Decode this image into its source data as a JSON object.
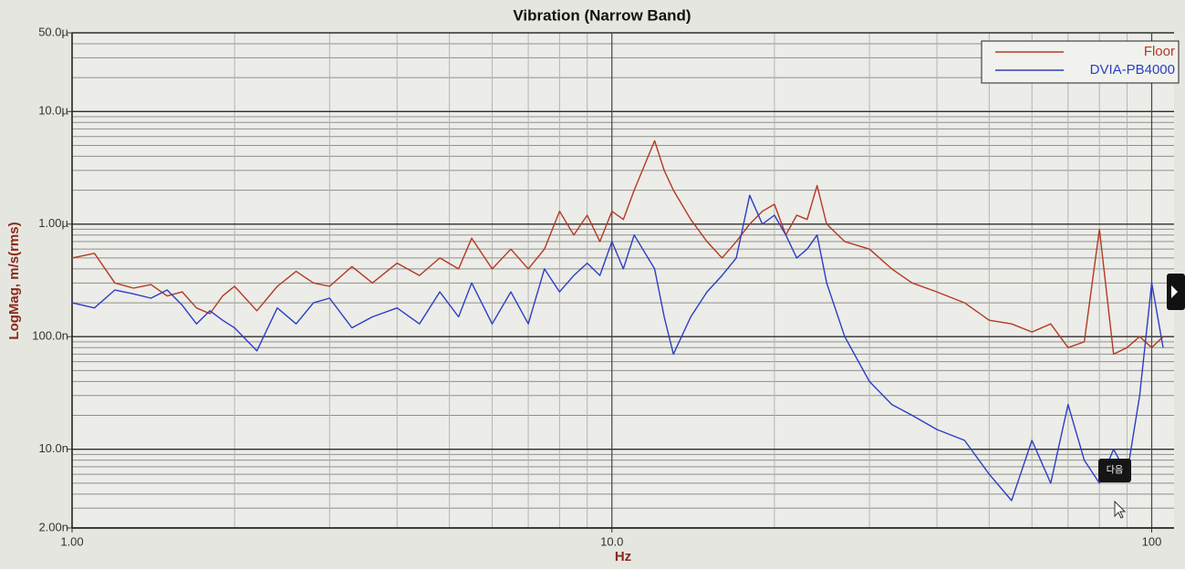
{
  "chart_data": {
    "type": "line",
    "title": "Vibration (Narrow Band)",
    "x_label": "Hz",
    "y_label": "LogMag, m/s(rms)",
    "x_log": true,
    "y_log": true,
    "grid": true,
    "legend": "upper right",
    "xlim": [
      1,
      110
    ],
    "ylim": [
      2e-09,
      5e-05
    ],
    "xticks": [
      {
        "value": 1,
        "label": "1.00"
      },
      {
        "value": 10,
        "label": "10.0"
      },
      100
    ],
    "xminorticks": [
      2,
      3,
      4,
      5,
      6,
      7,
      8,
      9,
      20,
      30,
      40,
      50,
      60,
      70,
      80,
      90
    ],
    "yticks": [
      {
        "value": 2e-09,
        "label": "2.00n"
      },
      {
        "value": 1e-08,
        "label": "10.0n"
      },
      {
        "value": 1e-07,
        "label": "100.0n"
      },
      {
        "value": 1e-06,
        "label": "1.00µ"
      },
      {
        "value": 1e-05,
        "label": "10.0µ"
      },
      {
        "value": 5e-05,
        "label": "50.0µ"
      }
    ],
    "yminorticks": [
      3e-09,
      4e-09,
      5e-09,
      6e-09,
      7e-09,
      8e-09,
      9e-09,
      2e-08,
      3e-08,
      4e-08,
      5e-08,
      6e-08,
      7e-08,
      8e-08,
      9e-08,
      2e-07,
      3e-07,
      4e-07,
      5e-07,
      6e-07,
      7e-07,
      8e-07,
      9e-07,
      2e-06,
      3e-06,
      4e-06,
      5e-06,
      6e-06,
      7e-06,
      8e-06,
      9e-06,
      2e-05,
      3e-05,
      4e-05
    ],
    "annotation": "다음",
    "x": [
      1,
      1.1,
      1.2,
      1.3,
      1.4,
      1.5,
      1.6,
      1.7,
      1.8,
      1.9,
      2,
      2.2,
      2.4,
      2.6,
      2.8,
      3,
      3.3,
      3.6,
      4,
      4.4,
      4.8,
      5.2,
      5.5,
      6,
      6.5,
      7,
      7.5,
      8,
      8.5,
      9,
      9.5,
      10,
      10.5,
      11,
      12,
      12.5,
      13,
      14,
      15,
      16,
      17,
      18,
      19,
      20,
      21,
      22,
      23,
      24,
      25,
      27,
      30,
      33,
      36,
      40,
      45,
      50,
      55,
      60,
      65,
      70,
      75,
      80,
      85,
      90,
      95,
      100,
      105
    ],
    "series": [
      {
        "name": "Floor",
        "color": "#b23a22",
        "values": [
          5e-07,
          5.5e-07,
          3e-07,
          2.7e-07,
          2.9e-07,
          2.3e-07,
          2.5e-07,
          1.8e-07,
          1.6e-07,
          2.3e-07,
          2.8e-07,
          1.7e-07,
          2.8e-07,
          3.8e-07,
          3e-07,
          2.8e-07,
          4.2e-07,
          3e-07,
          4.5e-07,
          3.5e-07,
          5e-07,
          4e-07,
          7.5e-07,
          4e-07,
          6e-07,
          4e-07,
          6e-07,
          1.3e-06,
          8e-07,
          1.2e-06,
          7e-07,
          1.3e-06,
          1.1e-06,
          2e-06,
          5.5e-06,
          3e-06,
          2e-06,
          1.1e-06,
          7e-07,
          5e-07,
          7e-07,
          1e-06,
          1.3e-06,
          1.5e-06,
          8e-07,
          1.2e-06,
          1.1e-06,
          2.2e-06,
          1e-06,
          7e-07,
          6e-07,
          4e-07,
          3e-07,
          2.5e-07,
          2e-07,
          1.4e-07,
          1.3e-07,
          1.1e-07,
          1.3e-07,
          8e-08,
          9e-08,
          9e-07,
          7e-08,
          8e-08,
          1e-07,
          8e-08,
          1e-07
        ]
      },
      {
        "name": "DVIA-PB4000",
        "color": "#2a3fc4",
        "values": [
          2e-07,
          1.8e-07,
          2.6e-07,
          2.4e-07,
          2.2e-07,
          2.6e-07,
          1.9e-07,
          1.3e-07,
          1.7e-07,
          1.4e-07,
          1.2e-07,
          7.5e-08,
          1.8e-07,
          1.3e-07,
          2e-07,
          2.2e-07,
          1.2e-07,
          1.5e-07,
          1.8e-07,
          1.3e-07,
          2.5e-07,
          1.5e-07,
          3e-07,
          1.3e-07,
          2.5e-07,
          1.3e-07,
          4e-07,
          2.5e-07,
          3.5e-07,
          4.5e-07,
          3.5e-07,
          7e-07,
          4e-07,
          8e-07,
          4e-07,
          1.5e-07,
          7e-08,
          1.5e-07,
          2.5e-07,
          3.5e-07,
          5e-07,
          1.8e-06,
          1e-06,
          1.2e-06,
          8e-07,
          5e-07,
          6e-07,
          8e-07,
          3e-07,
          1e-07,
          4e-08,
          2.5e-08,
          2e-08,
          1.5e-08,
          1.2e-08,
          6e-09,
          3.5e-09,
          1.2e-08,
          5e-09,
          2.5e-08,
          8e-09,
          5e-09,
          1e-08,
          6e-09,
          3e-08,
          3e-07,
          8e-08
        ]
      }
    ]
  }
}
